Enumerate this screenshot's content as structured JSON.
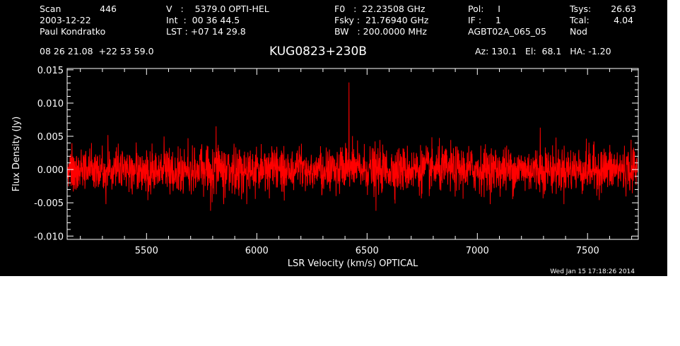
{
  "header": {
    "scan_label": "Scan",
    "scan_value": "446",
    "date": "2003-12-22",
    "observer": "Paul Kondratko",
    "velocity": "V   :    5379.0 OPTI-HEL",
    "int_time": "Int  :  00 36 44.5",
    "lst": "LST : +07 14 29.8",
    "f0": "F0   :  22.23508 GHz",
    "fsky": "Fsky :  21.76940 GHz",
    "bw": "BW   : 200.0000 MHz",
    "pol": "Pol:     I",
    "if": "IF :     1",
    "project": "AGBT02A_065_05",
    "tsys_label": "Tsys:",
    "tsys_value": "26.63",
    "tcal_label": "Tcal:",
    "tcal_value": "4.04",
    "mode": "Nod",
    "coords": "08 26 21.08  +22 53 59.0",
    "source": "KUG0823+230B",
    "az_el_ha": "Az: 130.1   El:  68.1   HA: -1.20",
    "timestamp": "Wed Jan 15 17:18:26 2014"
  },
  "colors": {
    "background": "#000000",
    "axes": "#ffffff",
    "trace": "#ff0000"
  },
  "chart_data": {
    "type": "line",
    "title": "KUG0823+230B",
    "xlabel": "LSR Velocity (km/s) OPTICAL",
    "ylabel": "Flux Density (Jy)",
    "xlim": [
      5140,
      7730
    ],
    "ylim": [
      -0.0105,
      0.0152
    ],
    "x_ticks": [
      5500,
      6000,
      6500,
      7000,
      7500
    ],
    "x_tick_labels": [
      "5500",
      "6000",
      "6500",
      "7000",
      "7500"
    ],
    "y_ticks": [
      -0.01,
      -0.005,
      0.0,
      0.005,
      0.01,
      0.015
    ],
    "y_tick_labels": [
      "-0.010",
      "-0.005",
      "0.000",
      "0.005",
      "0.010",
      "0.015"
    ],
    "series": [
      {
        "x_range": [
          5140,
          7725
        ],
        "noise_rms_jy": 0.0017,
        "features": [
          {
            "x": 6418,
            "y": 0.0131
          },
          {
            "x": 5815,
            "y": 0.0065
          },
          {
            "x": 5790,
            "y": -0.0062
          },
          {
            "x": 6540,
            "y": -0.0062
          },
          {
            "x": 7285,
            "y": 0.0063
          }
        ]
      }
    ],
    "grid": false
  }
}
